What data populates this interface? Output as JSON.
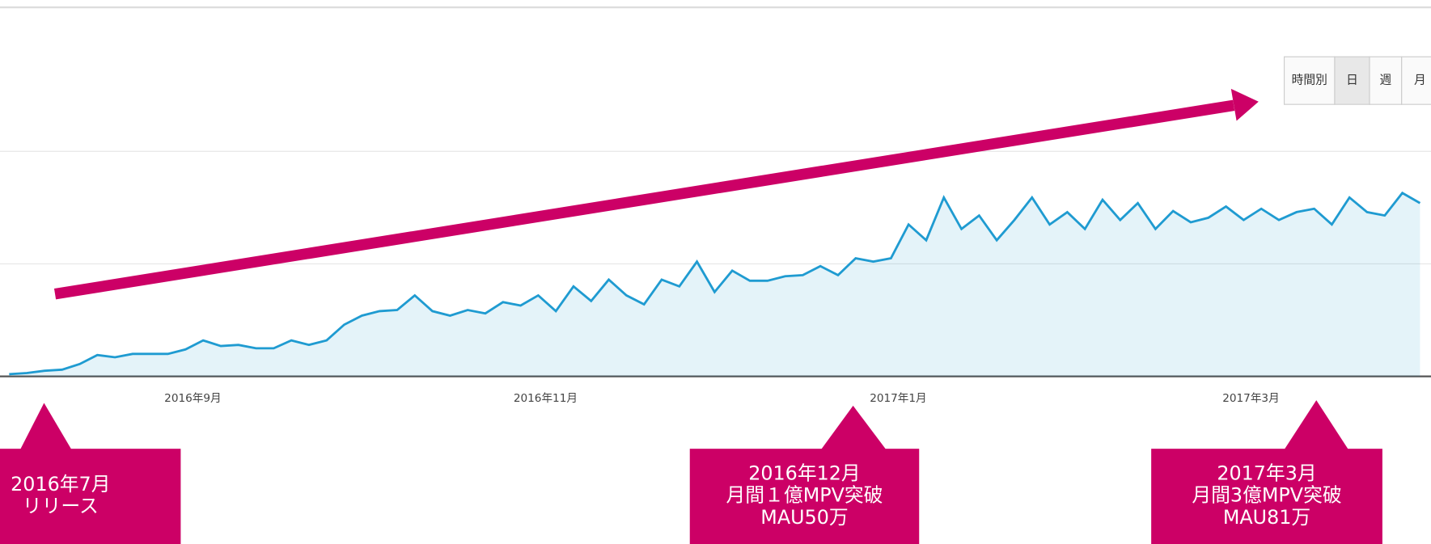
{
  "chart_data": {
    "type": "area",
    "categories": [
      null,
      null,
      null,
      null,
      null,
      null,
      null,
      null,
      null,
      null,
      "2016年9月",
      null,
      null,
      null,
      null,
      null,
      null,
      null,
      null,
      null,
      null,
      null,
      null,
      null,
      null,
      null,
      null,
      null,
      null,
      null,
      "2016年11月",
      null,
      null,
      null,
      null,
      null,
      null,
      null,
      null,
      null,
      null,
      null,
      null,
      null,
      null,
      null,
      null,
      null,
      null,
      null,
      "2017年1月",
      null,
      null,
      null,
      null,
      null,
      null,
      null,
      null,
      null,
      null,
      null,
      null,
      null,
      null,
      null,
      null,
      null,
      null,
      null,
      "2017年3月",
      null,
      null,
      null,
      null,
      null,
      null,
      null,
      null,
      null,
      null
    ],
    "values": [
      0.02,
      0.03,
      0.05,
      0.06,
      0.11,
      0.19,
      0.17,
      0.2,
      0.2,
      0.2,
      0.24,
      0.32,
      0.27,
      0.28,
      0.25,
      0.25,
      0.32,
      0.28,
      0.32,
      0.46,
      0.54,
      0.58,
      0.59,
      0.72,
      0.58,
      0.54,
      0.59,
      0.56,
      0.66,
      0.63,
      0.72,
      0.58,
      0.8,
      0.67,
      0.86,
      0.72,
      0.64,
      0.86,
      0.8,
      1.02,
      0.75,
      0.94,
      0.85,
      0.85,
      0.89,
      0.9,
      0.98,
      0.9,
      1.05,
      1.02,
      1.05,
      1.35,
      1.21,
      1.59,
      1.31,
      1.43,
      1.21,
      1.39,
      1.59,
      1.35,
      1.46,
      1.31,
      1.57,
      1.39,
      1.54,
      1.31,
      1.47,
      1.37,
      1.41,
      1.51,
      1.39,
      1.49,
      1.39,
      1.46,
      1.49,
      1.35,
      1.59,
      1.46,
      1.43,
      1.63,
      1.54
    ],
    "color": "#1f9bd1",
    "ylim": [
      0,
      3.28
    ],
    "yticks": [
      0,
      1,
      2
    ],
    "grid": true,
    "buttons": [
      "時間別",
      "日",
      "週",
      "月"
    ],
    "annotations": [
      {
        "lines": [
          "2016年7月",
          "リリース"
        ]
      },
      {
        "lines": [
          "2016年12月",
          "月間１億MPV突破",
          "MAU50万"
        ]
      },
      {
        "lines": [
          "2017年3月",
          "月間3億MPV突破",
          "MAU81万"
        ]
      }
    ]
  }
}
